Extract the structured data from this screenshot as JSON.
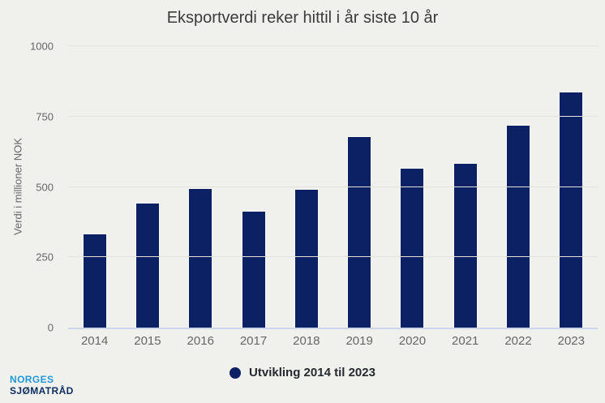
{
  "chart_data": {
    "type": "bar",
    "title": "Eksportverdi reker hittil i år siste 10 år",
    "categories": [
      "2014",
      "2015",
      "2016",
      "2017",
      "2018",
      "2019",
      "2020",
      "2021",
      "2022",
      "2023"
    ],
    "values": [
      335,
      445,
      495,
      415,
      493,
      680,
      567,
      585,
      720,
      839
    ],
    "series_name": "Utvikling 2014 til 2023",
    "xlabel": "",
    "ylabel": "Verdi i millioner NOK",
    "ylim": [
      0,
      1000
    ],
    "yticks": [
      0,
      250,
      500,
      750,
      1000
    ],
    "grid": true,
    "legend_position": "bottom"
  },
  "legend": {
    "label": "Utvikling 2014 til 2023"
  },
  "logo": {
    "line1": "NORGES",
    "line2": "SJØMATRÅD"
  },
  "colors": {
    "background": "#f0f1ed",
    "bar": "#0c2164",
    "axis_line": "#ccd4e8",
    "gridline": "#e2e3df",
    "tick_text": "#666666",
    "title_text": "#3b3b3b",
    "legend_text": "#24292e",
    "logo_blue": "#2298d8",
    "logo_navy": "#0d2c5f"
  }
}
